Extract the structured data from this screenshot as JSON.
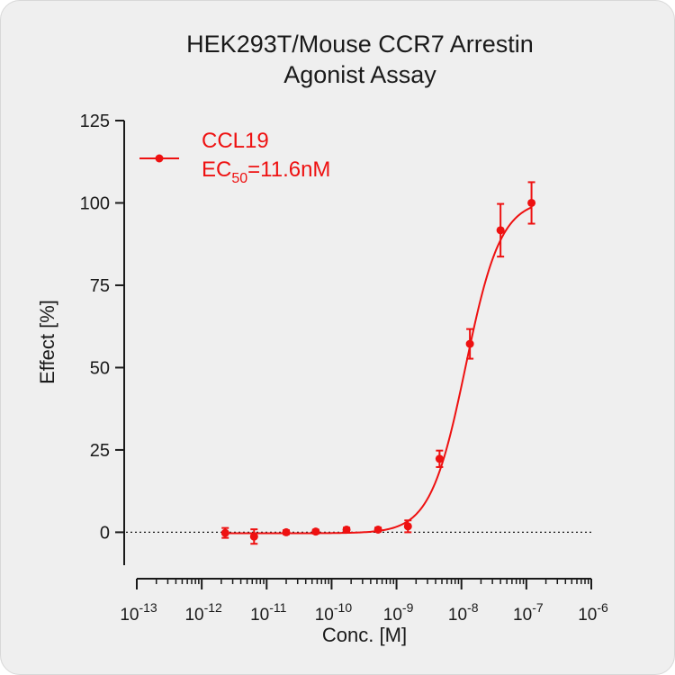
{
  "chart_data": {
    "type": "scatter",
    "title_line1": "HEK293T/Mouse CCR7 Arrestin",
    "title_line2": "Agonist Assay",
    "xlabel": "Conc. [M]",
    "ylabel": "Effect  [%]",
    "x_scale": "log",
    "xlim": [
      1e-13,
      1e-06
    ],
    "ylim": [
      -10,
      125
    ],
    "y_ticks": [
      0,
      25,
      50,
      75,
      100,
      125
    ],
    "x_tick_labels": [
      {
        "base": "10",
        "exp": "-13"
      },
      {
        "base": "10",
        "exp": "-12"
      },
      {
        "base": "10",
        "exp": "-11"
      },
      {
        "base": "10",
        "exp": "-10"
      },
      {
        "base": "10",
        "exp": "-9"
      },
      {
        "base": "10",
        "exp": "-8"
      },
      {
        "base": "10",
        "exp": "-7"
      },
      {
        "base": "10",
        "exp": "-6"
      }
    ],
    "series": [
      {
        "name": "CCL19",
        "color": "#ee1111",
        "ec50_label": {
          "prefix": "EC",
          "sub": "50",
          "suffix": "=11.6nM"
        },
        "fit": {
          "bottom": -0.3,
          "top": 101,
          "ec50": 1.16e-08,
          "hill": 1.6
        },
        "points": [
          {
            "x": 2.3e-12,
            "y": -0.2,
            "err": 1.5
          },
          {
            "x": 6.4e-12,
            "y": -1.3,
            "err": 2.2
          },
          {
            "x": 2e-11,
            "y": 0.0,
            "err": 0.6
          },
          {
            "x": 5.7e-11,
            "y": 0.2,
            "err": 0.6
          },
          {
            "x": 1.7e-10,
            "y": 0.8,
            "err": 0.6
          },
          {
            "x": 5.2e-10,
            "y": 0.8,
            "err": 0.6
          },
          {
            "x": 1.5e-09,
            "y": 1.8,
            "err": 1.8
          },
          {
            "x": 4.6e-09,
            "y": 22.3,
            "err": 2.5
          },
          {
            "x": 1.35e-08,
            "y": 57.2,
            "err": 4.5
          },
          {
            "x": 4e-08,
            "y": 91.7,
            "err": 8.0
          },
          {
            "x": 1.2e-07,
            "y": 100.0,
            "err": 6.3
          }
        ]
      }
    ]
  }
}
